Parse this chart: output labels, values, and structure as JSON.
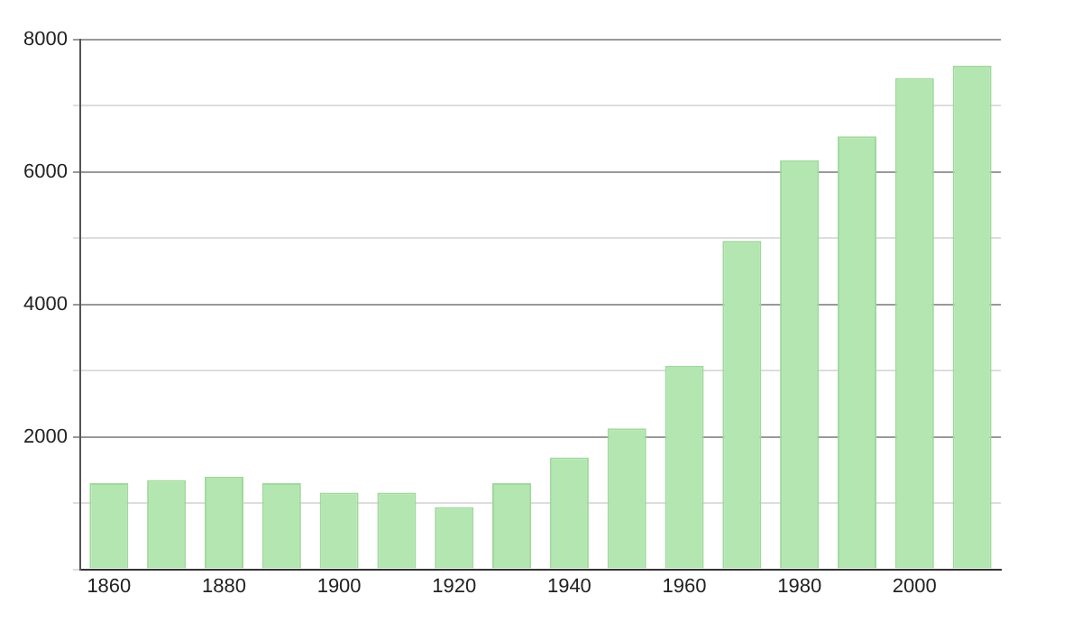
{
  "chart_data": {
    "type": "bar",
    "categories": [
      "1860",
      null,
      "1880",
      null,
      "1900",
      null,
      "1920",
      null,
      "1940",
      null,
      "1960",
      null,
      "1980",
      null,
      "2000",
      null
    ],
    "values": [
      1300,
      1350,
      1400,
      1300,
      1160,
      1160,
      940,
      1300,
      1690,
      2130,
      3075,
      4960,
      6180,
      6540,
      7420,
      7610
    ],
    "color": "#b3e6b0",
    "ylim": [
      0,
      8000
    ],
    "yticks": [
      {
        "value": 0,
        "label": null
      },
      {
        "value": 1000,
        "label": null
      },
      2000,
      {
        "value": 3000,
        "label": null
      },
      4000,
      {
        "value": 5000,
        "label": null
      },
      6000,
      {
        "value": 7000,
        "label": null
      },
      8000
    ],
    "grid": "y",
    "legend": false
  }
}
